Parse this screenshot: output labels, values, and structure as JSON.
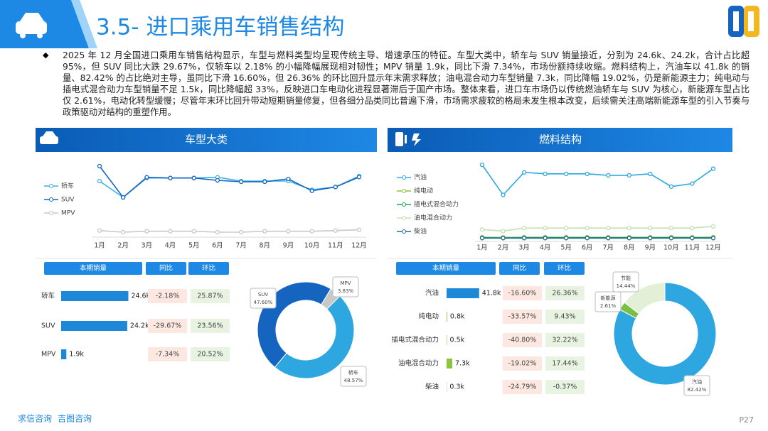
{
  "header": {
    "title": "3.5- 进口乘用车销售结构"
  },
  "summary": "2025 年 12 月全国进口乘用车销售结构显示，车型与燃料类型均呈现传统主导、增速承压的特征。车型大类中，轿车与 SUV 销量接近，分别为 24.6k、24.2k，合计占比超 95%，但 SUV 同比大跌 29.67%，仅轿车以 2.18% 的小幅降幅展现相对韧性；MPV 销量 1.9k，同比下滑 7.34%，市场份额持续收缩。燃料结构上，汽油车以 41.8k 的销量、82.42% 的占比绝对主导，虽同比下滑 16.60%，但 26.36% 的环比回升显示年末需求释放；油电混合动力车型销量 7.3k，同比降幅 19.02%，仍是新能源主力；纯电动与插电式混合动力车型销量不足 1.5k，同比降幅超 33%，反映进口车电动化进程显著滞后于国产市场。整体来看，进口车市场仍以传统燃油轿车与 SUV 为核心，新能源车型占比仅 2.61%，电动化转型缓慢；尽管年末环比回升带动短期销量修复，但各细分品类同比普遍下滑，市场需求疲软的格局未发生根本改变，后续需关注高端新能源车型的引入节奏与政策驱动对结构的重塑作用。",
  "panels": [
    {
      "title": "车型大类"
    },
    {
      "title": "燃料结构"
    }
  ],
  "chart_data": [
    {
      "type": "line",
      "categories": [
        "1月",
        "2月",
        "3月",
        "4月",
        "5月",
        "6月",
        "7月",
        "8月",
        "9月",
        "10月",
        "11月",
        "12月"
      ],
      "ylim": [
        0,
        30
      ],
      "series": [
        {
          "name": "轿车",
          "color": "#3bb0e6",
          "values": [
            22.5,
            15.6,
            23.8,
            23.8,
            23.8,
            24.1,
            22.5,
            22.5,
            22.5,
            18.8,
            20,
            24.6
          ]
        },
        {
          "name": "SUV",
          "color": "#1565c0",
          "values": [
            28.8,
            15.6,
            24.1,
            23.8,
            23.8,
            22.8,
            22.2,
            22.2,
            23.4,
            18.4,
            20,
            24.2
          ]
        },
        {
          "name": "MPV",
          "color": "#c8c8c8",
          "values": [
            1.6,
            0.9,
            1.3,
            1.3,
            1.3,
            0.9,
            0.9,
            1.3,
            1.3,
            1.3,
            1.6,
            1.9
          ]
        }
      ]
    },
    {
      "type": "line",
      "categories": [
        "1月",
        "2月",
        "3月",
        "4月",
        "5月",
        "6月",
        "7月",
        "8月",
        "9月",
        "10月",
        "11月",
        "12月"
      ],
      "ylim": [
        0,
        45
      ],
      "series": [
        {
          "name": "汽油",
          "color": "#2ea7e0",
          "values": [
            44.1,
            26.1,
            39.6,
            38.7,
            38.7,
            38.7,
            37.8,
            37.8,
            38.7,
            31.1,
            32.9,
            41.8
          ]
        },
        {
          "name": "纯电动",
          "color": "#8cc63f",
          "values": [
            0.8,
            0.7,
            0.8,
            0.8,
            0.8,
            0.8,
            0.8,
            0.8,
            0.8,
            0.8,
            0.8,
            0.8
          ]
        },
        {
          "name": "插电式混合动力",
          "color": "#1e9e6a",
          "values": [
            0.5,
            0.4,
            0.5,
            0.5,
            0.5,
            0.5,
            0.5,
            0.5,
            0.5,
            0.5,
            0.5,
            0.5
          ]
        },
        {
          "name": "油电混合动力",
          "color": "#c5e0b4",
          "values": [
            5.4,
            4.5,
            6.3,
            6.3,
            6.3,
            6.3,
            6.3,
            6.3,
            6.3,
            6.3,
            6.3,
            7.3
          ]
        },
        {
          "name": "柴油",
          "color": "#1a6e8e",
          "values": [
            0.3,
            0.3,
            0.3,
            0.3,
            0.3,
            0.3,
            0.3,
            0.3,
            0.3,
            0.3,
            0.3,
            0.3
          ]
        }
      ]
    },
    {
      "type": "bar",
      "columns": [
        "本期销量",
        "同比",
        "环比"
      ],
      "categories": [
        "轿车",
        "SUV",
        "MPV"
      ],
      "xlim": [
        0,
        25
      ],
      "color": "#1e88d8",
      "values": [
        24.6,
        24.2,
        1.9
      ],
      "value_labels": [
        "24.6k",
        "24.2k",
        "1.9k"
      ],
      "yoy": [
        "-2.18%",
        "-29.67%",
        "-7.34%"
      ],
      "mom": [
        "25.87%",
        "23.56%",
        "20.52%"
      ]
    },
    {
      "type": "pie",
      "categories": [
        "轿车",
        "SUV",
        "MPV"
      ],
      "values": [
        48.57,
        47.6,
        3.83
      ],
      "value_labels": [
        "48.57%",
        "47.60%",
        "3.83%"
      ],
      "colors": [
        "#2ea7e0",
        "#1565c0",
        "#c8c8c8"
      ]
    },
    {
      "type": "bar",
      "columns": [
        "本期销量",
        "同比",
        "环比"
      ],
      "categories": [
        "汽油",
        "纯电动",
        "插电式混合动力",
        "油电混合动力",
        "柴油"
      ],
      "xlim": [
        0,
        42
      ],
      "colors": [
        "#1e88d8",
        "#8cc63f",
        "#8cc63f",
        "#8cc63f",
        "#8cc63f"
      ],
      "values": [
        41.8,
        0.8,
        0.5,
        7.3,
        0.3
      ],
      "value_labels": [
        "41.8k",
        "0.8k",
        "0.5k",
        "7.3k",
        "0.3k"
      ],
      "yoy": [
        "-16.60%",
        "-33.57%",
        "-40.80%",
        "-19.02%",
        "-24.79%"
      ],
      "mom": [
        "26.36%",
        "9.43%",
        "32.22%",
        "17.44%",
        "-0.37%"
      ]
    },
    {
      "type": "pie",
      "categories": [
        "汽油",
        "新能源",
        "节能"
      ],
      "values": [
        82.42,
        2.61,
        14.44
      ],
      "value_labels": [
        "82.42%",
        "2.61%",
        "14.44%"
      ],
      "colors": [
        "#2ea7e0",
        "#7ac143",
        "#e3efd6"
      ]
    }
  ],
  "footer": {
    "links": [
      "求信咨询",
      "吉图咨询"
    ],
    "page": "P27"
  }
}
